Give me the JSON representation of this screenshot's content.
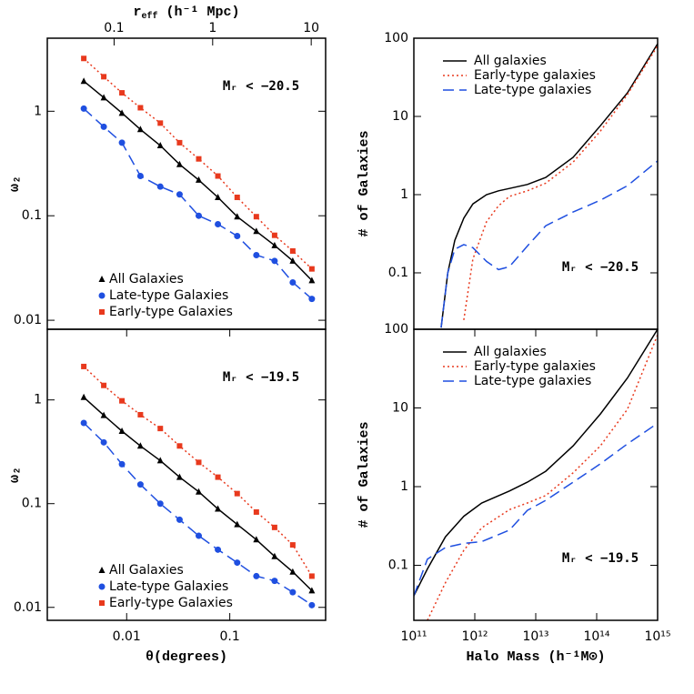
{
  "chart_data": [
    {
      "type": "scatter",
      "x2label": [
        "r",
        "eff",
        " (h⁻¹ Mpc)"
      ],
      "x2lim": [
        0.021,
        14
      ],
      "x2ticks": [
        0.1,
        1,
        10
      ],
      "ylabel": "ω₂",
      "annotation": "Mᵣ < −20.5",
      "xlog": true,
      "ylog": true,
      "xlim": [
        0.0017,
        0.85
      ],
      "ylim": [
        0.0082,
        5
      ],
      "yticks": [
        0.01,
        0.1,
        1
      ],
      "x": [
        0.00384,
        0.006,
        0.009,
        0.0136,
        0.0212,
        0.0326,
        0.05,
        0.0767,
        0.118,
        0.181,
        0.272,
        0.408,
        0.625
      ],
      "series": [
        {
          "name": "All Galaxies",
          "color": "#000000",
          "marker": "triangle",
          "linestyle": "solid",
          "values": [
            1.94,
            1.35,
            0.96,
            0.67,
            0.47,
            0.31,
            0.22,
            0.15,
            0.098,
            0.071,
            0.052,
            0.037,
            0.024
          ]
        },
        {
          "name": "Late-type Galaxies",
          "color": "#1f4fe0",
          "marker": "circle",
          "linestyle": "dashed",
          "values": [
            1.06,
            0.71,
            0.5,
            0.24,
            0.19,
            0.16,
            0.1,
            0.083,
            0.064,
            0.042,
            0.037,
            0.023,
            0.016
          ]
        },
        {
          "name": "Early-type Galaxies",
          "color": "#e8391d",
          "marker": "square",
          "linestyle": "dotted",
          "values": [
            3.2,
            2.14,
            1.5,
            1.08,
            0.77,
            0.5,
            0.35,
            0.24,
            0.15,
            0.098,
            0.065,
            0.046,
            0.031
          ]
        }
      ]
    },
    {
      "type": "scatter",
      "xlabel": "θ(degrees)",
      "ylabel": "ω₂",
      "annotation": "Mᵣ < −19.5",
      "xlog": true,
      "ylog": true,
      "xlim": [
        0.0017,
        0.85
      ],
      "ylim": [
        0.0075,
        4.8
      ],
      "xticks": [
        0.01,
        0.1
      ],
      "yticks": [
        0.01,
        0.1,
        1
      ],
      "x": [
        0.00384,
        0.006,
        0.009,
        0.0136,
        0.0212,
        0.0326,
        0.05,
        0.0767,
        0.118,
        0.181,
        0.272,
        0.408,
        0.625
      ],
      "series": [
        {
          "name": "All Galaxies",
          "color": "#000000",
          "marker": "triangle",
          "linestyle": "solid",
          "values": [
            1.06,
            0.71,
            0.5,
            0.36,
            0.26,
            0.18,
            0.13,
            0.089,
            0.063,
            0.045,
            0.031,
            0.022,
            0.0145
          ]
        },
        {
          "name": "Late-type Galaxies",
          "color": "#1f4fe0",
          "marker": "circle",
          "linestyle": "dashed",
          "values": [
            0.6,
            0.39,
            0.24,
            0.153,
            0.1,
            0.07,
            0.049,
            0.036,
            0.027,
            0.02,
            0.018,
            0.014,
            0.0105
          ]
        },
        {
          "name": "Early-type Galaxies",
          "color": "#e8391d",
          "marker": "square",
          "linestyle": "dotted",
          "values": [
            2.1,
            1.38,
            0.98,
            0.72,
            0.53,
            0.36,
            0.25,
            0.18,
            0.125,
            0.083,
            0.059,
            0.04,
            0.02
          ]
        }
      ]
    },
    {
      "type": "line",
      "ylabel": "# of Galaxies",
      "annotation": "Mᵣ < −20.5",
      "xlog": true,
      "ylog": true,
      "xlim": [
        100000000000.0,
        1000000000000000.0
      ],
      "ylim": [
        0.019,
        100
      ],
      "yticks": [
        0.1,
        1,
        10,
        100
      ],
      "x": [
        280000000000.0,
        360000000000.0,
        470000000000.0,
        660000000000.0,
        930000000000.0,
        1560000000000.0,
        2450000000000.0,
        3700000000000.0,
        7300000000000.0,
        14600000000000.0,
        41000000000000.0,
        115000000000000.0,
        320000000000000.0,
        1000000000000000.0
      ],
      "series": [
        {
          "name": "All galaxies",
          "color": "#000000",
          "linestyle": "solid",
          "values": [
            0.02,
            0.1,
            0.26,
            0.5,
            0.76,
            1.0,
            1.12,
            1.2,
            1.35,
            1.66,
            3.0,
            7.6,
            20,
            85
          ]
        },
        {
          "name": "Early-type galaxies",
          "color": "#e8391d",
          "linestyle": "dotted",
          "values": [
            null,
            null,
            null,
            0.025,
            0.15,
            0.45,
            0.72,
            0.95,
            1.12,
            1.4,
            2.6,
            6.5,
            19,
            80
          ]
        },
        {
          "name": "Late-type galaxies",
          "color": "#1f4fe0",
          "linestyle": "dashed",
          "values": [
            0.02,
            0.1,
            0.2,
            0.23,
            0.21,
            0.14,
            0.11,
            0.12,
            0.22,
            0.4,
            0.6,
            0.85,
            1.3,
            2.7
          ]
        }
      ]
    },
    {
      "type": "line",
      "xlabel": "Halo Mass (h⁻¹M⊙)",
      "ylabel": "# of Galaxies",
      "annotation": "Mᵣ < −19.5",
      "xlog": true,
      "ylog": true,
      "xlim": [
        100000000000.0,
        1000000000000000.0
      ],
      "ylim": [
        0.02,
        100
      ],
      "yticks": [
        0.1,
        1,
        10,
        100
      ],
      "xticks": [
        {
          "value": 100000000000.0,
          "label": "10¹¹"
        },
        {
          "value": 1000000000000.0,
          "label": "10¹²"
        },
        {
          "value": 10000000000000.0,
          "label": "10¹³"
        },
        {
          "value": 100000000000000.0,
          "label": "10¹⁴"
        },
        {
          "value": 1000000000000000.0,
          "label": "10¹⁵"
        }
      ],
      "x": [
        100000000000.0,
        167000000000.0,
        330000000000.0,
        660000000000.0,
        1300000000000.0,
        3700000000000.0,
        7300000000000.0,
        14600000000000.0,
        41000000000000.0,
        115000000000000.0,
        320000000000000.0,
        1000000000000000.0
      ],
      "series": [
        {
          "name": "All galaxies",
          "color": "#000000",
          "linestyle": "solid",
          "values": [
            0.041,
            0.09,
            0.23,
            0.42,
            0.62,
            0.88,
            1.14,
            1.57,
            3.3,
            8.4,
            24,
            100
          ]
        },
        {
          "name": "Early-type galaxies",
          "color": "#e8391d",
          "linestyle": "dotted",
          "values": [
            null,
            0.02,
            0.06,
            0.155,
            0.3,
            0.51,
            0.62,
            0.77,
            1.5,
            3.3,
            9.6,
            85
          ]
        },
        {
          "name": "Late-type galaxies",
          "color": "#1f4fe0",
          "linestyle": "dashed",
          "values": [
            0.041,
            0.12,
            0.168,
            0.19,
            0.2,
            0.28,
            0.5,
            0.67,
            1.14,
            1.95,
            3.5,
            6.4
          ]
        }
      ]
    }
  ]
}
